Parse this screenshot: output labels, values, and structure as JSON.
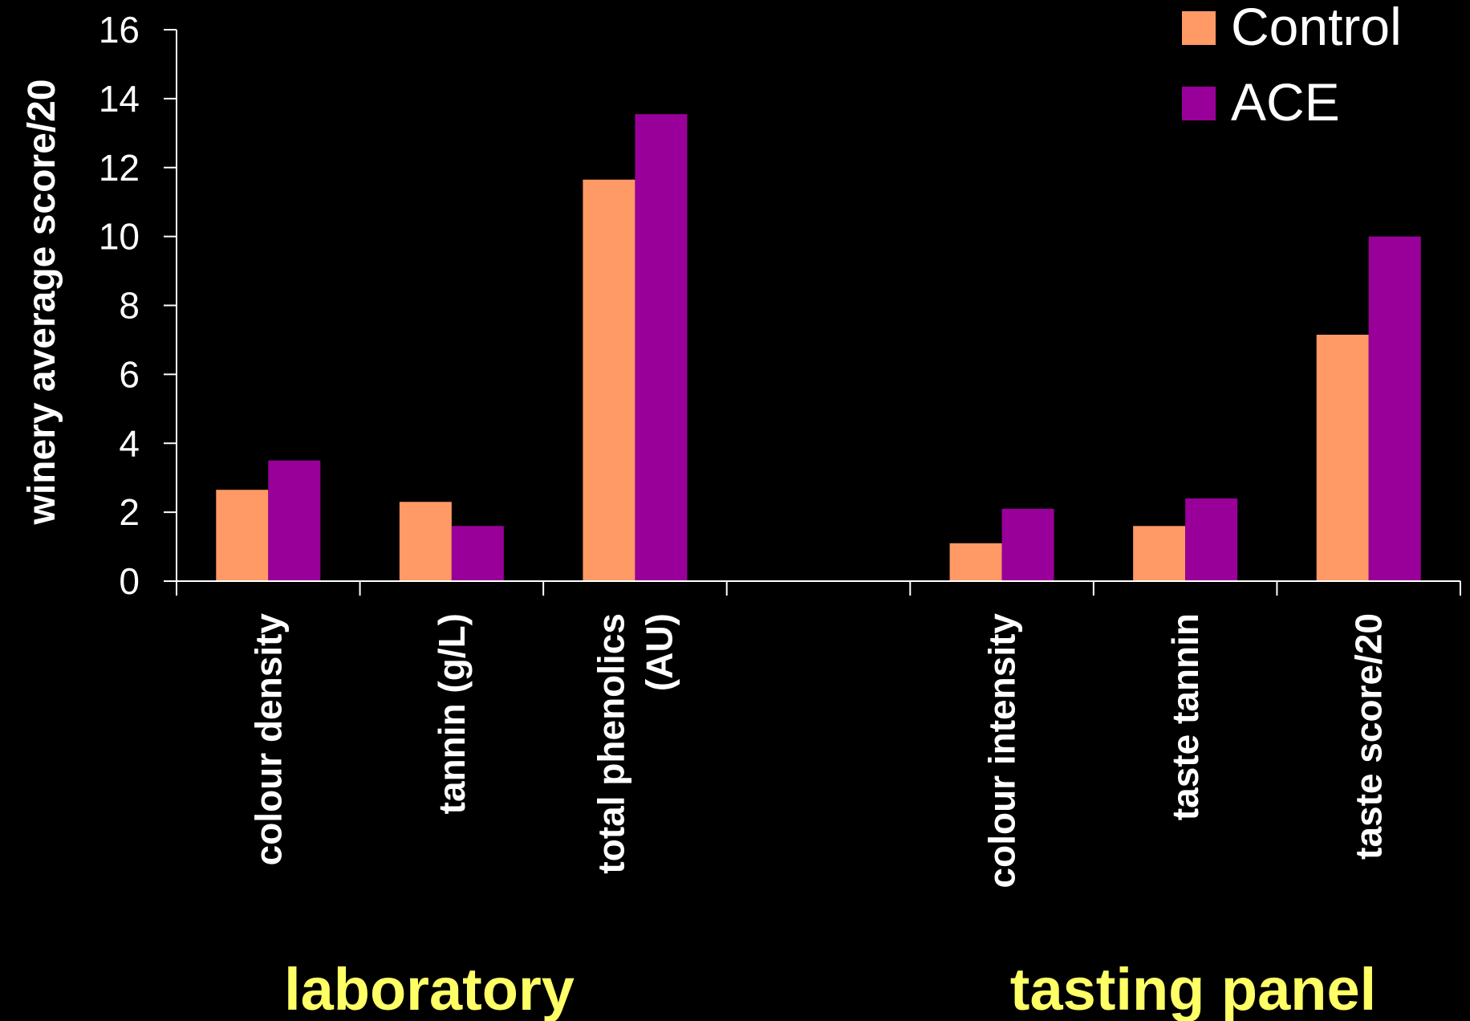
{
  "chart_data": {
    "type": "bar",
    "ylabel": "winery average score/20",
    "ylim": [
      0,
      16
    ],
    "yticks": [
      0,
      2,
      4,
      6,
      8,
      10,
      12,
      14,
      16
    ],
    "grid": false,
    "legend_position": "top-right",
    "categories": [
      [
        "colour density"
      ],
      [
        "tannin (g/L)"
      ],
      [
        "total phenolics",
        "(AU)"
      ],
      [
        ""
      ],
      [
        "colour intensity"
      ],
      [
        "taste tannin"
      ],
      [
        "taste score/20"
      ]
    ],
    "series": [
      {
        "name": "Control",
        "color": "#ff9966",
        "values": [
          2.65,
          2.3,
          11.65,
          null,
          1.1,
          1.6,
          7.15
        ]
      },
      {
        "name": "ACE",
        "color": "#990099",
        "values": [
          3.5,
          1.6,
          13.55,
          null,
          2.1,
          2.4,
          10.0
        ]
      }
    ],
    "group_labels": [
      "laboratory",
      "tasting panel"
    ]
  }
}
